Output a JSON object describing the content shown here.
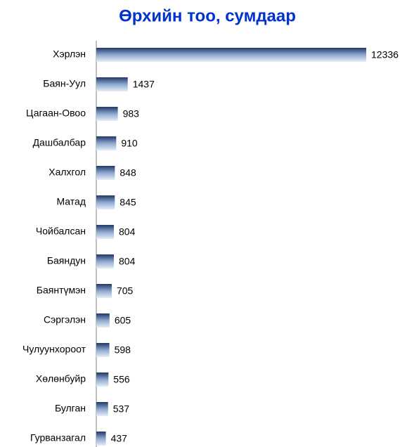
{
  "chart_data": {
    "type": "bar",
    "orientation": "horizontal",
    "title": "Өрхийн тоо, сумдаар",
    "categories": [
      "Хэрлэн",
      "Баян-Уул",
      "Цагаан-Овоо",
      "Дашбалбар",
      "Халхгол",
      "Матад",
      "Чойбалсан",
      "Баяндун",
      "Баянтүмэн",
      "Сэргэлэн",
      "Чулуунхороот",
      "Хөлөнбуйр",
      "Булган",
      "Гурванзагал"
    ],
    "values": [
      12336,
      1437,
      983,
      910,
      848,
      845,
      804,
      804,
      705,
      605,
      598,
      556,
      537,
      437
    ],
    "data_labels": true
  }
}
